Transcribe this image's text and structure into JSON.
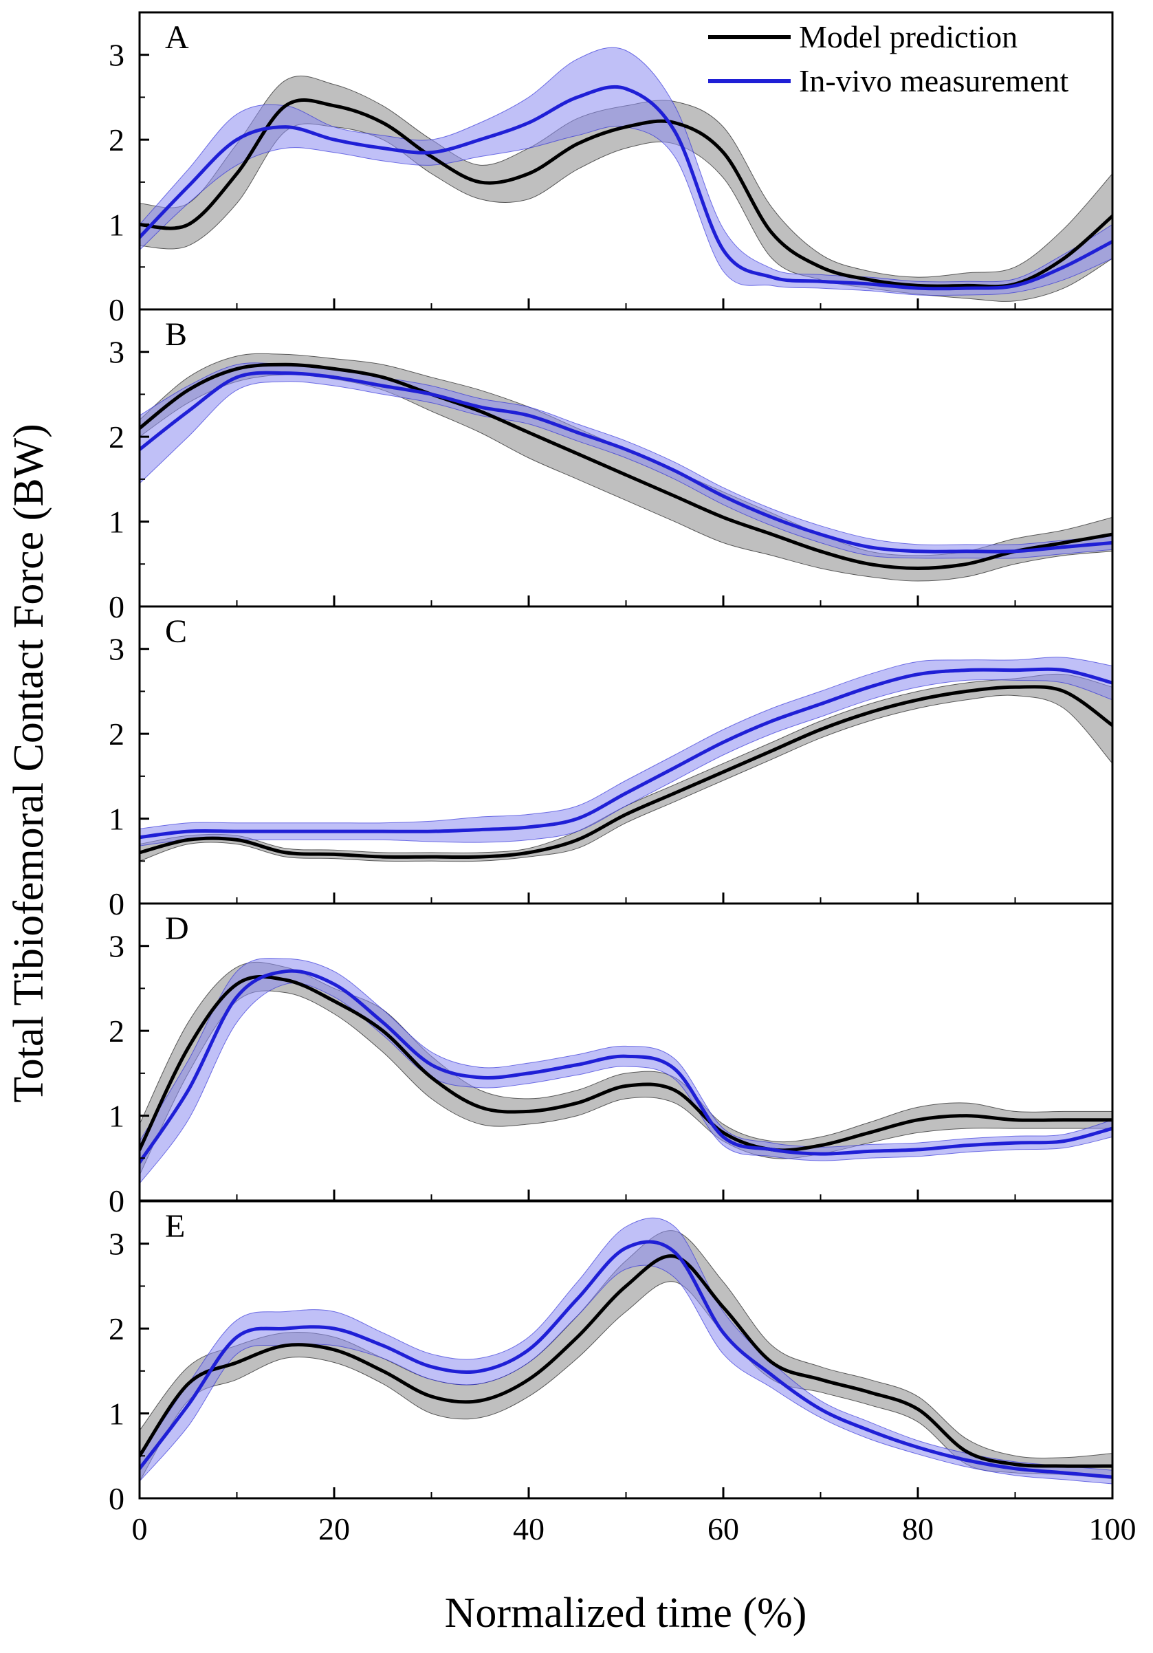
{
  "chart_data": {
    "type": "line",
    "xlabel": "Normalized time (%)",
    "ylabel": "Total Tibiofemoral Contact Force (BW)",
    "xlim": [
      0,
      100
    ],
    "ylim": [
      0,
      3.5
    ],
    "xticks": [
      0,
      20,
      40,
      60,
      80,
      100
    ],
    "yticks": [
      0,
      1,
      2,
      3
    ],
    "legend": {
      "position": "top-right",
      "entries": [
        {
          "name": "Model prediction",
          "color": "#000000"
        },
        {
          "name": "In-vivo measurement",
          "color": "#1f1fd6"
        }
      ]
    },
    "colors": {
      "model_line": "#000000",
      "model_band": "#a9a9a9",
      "measure_line": "#1f1fd6",
      "measure_band": "#8c8cf0"
    },
    "x": [
      0,
      5,
      10,
      15,
      20,
      25,
      30,
      35,
      40,
      45,
      50,
      55,
      60,
      65,
      70,
      75,
      80,
      85,
      90,
      95,
      100
    ],
    "panels": [
      {
        "label": "A",
        "series": [
          {
            "name": "Model prediction",
            "values": [
              1.0,
              1.0,
              1.6,
              2.4,
              2.4,
              2.2,
              1.8,
              1.5,
              1.6,
              1.95,
              2.15,
              2.2,
              1.85,
              0.9,
              0.5,
              0.35,
              0.28,
              0.28,
              0.3,
              0.6,
              1.1
            ],
            "sd": [
              0.25,
              0.25,
              0.35,
              0.3,
              0.25,
              0.2,
              0.2,
              0.2,
              0.3,
              0.3,
              0.25,
              0.25,
              0.3,
              0.3,
              0.15,
              0.1,
              0.1,
              0.15,
              0.2,
              0.35,
              0.5
            ]
          },
          {
            "name": "In-vivo measurement",
            "values": [
              0.85,
              1.45,
              2.0,
              2.15,
              2.0,
              1.9,
              1.85,
              2.0,
              2.2,
              2.5,
              2.6,
              2.1,
              0.7,
              0.38,
              0.33,
              0.3,
              0.25,
              0.25,
              0.28,
              0.5,
              0.8
            ],
            "sd": [
              0.15,
              0.2,
              0.3,
              0.25,
              0.15,
              0.15,
              0.15,
              0.2,
              0.3,
              0.45,
              0.45,
              0.3,
              0.25,
              0.1,
              0.08,
              0.08,
              0.08,
              0.08,
              0.08,
              0.15,
              0.2
            ]
          }
        ]
      },
      {
        "label": "B",
        "series": [
          {
            "name": "Model prediction",
            "values": [
              2.1,
              2.55,
              2.8,
              2.85,
              2.8,
              2.7,
              2.5,
              2.3,
              2.05,
              1.8,
              1.55,
              1.3,
              1.05,
              0.85,
              0.65,
              0.5,
              0.45,
              0.5,
              0.65,
              0.75,
              0.85
            ],
            "sd": [
              0.1,
              0.15,
              0.15,
              0.12,
              0.12,
              0.15,
              0.2,
              0.25,
              0.3,
              0.3,
              0.3,
              0.3,
              0.3,
              0.25,
              0.2,
              0.15,
              0.15,
              0.15,
              0.15,
              0.15,
              0.2
            ]
          },
          {
            "name": "In-vivo measurement",
            "values": [
              1.85,
              2.3,
              2.7,
              2.75,
              2.7,
              2.6,
              2.5,
              2.35,
              2.25,
              2.05,
              1.85,
              1.6,
              1.3,
              1.05,
              0.85,
              0.7,
              0.65,
              0.65,
              0.65,
              0.7,
              0.75
            ],
            "sd": [
              0.4,
              0.3,
              0.15,
              0.1,
              0.1,
              0.1,
              0.1,
              0.1,
              0.1,
              0.1,
              0.1,
              0.1,
              0.1,
              0.1,
              0.1,
              0.1,
              0.08,
              0.08,
              0.08,
              0.08,
              0.08
            ]
          }
        ]
      },
      {
        "label": "C",
        "series": [
          {
            "name": "Model prediction",
            "values": [
              0.6,
              0.75,
              0.75,
              0.6,
              0.58,
              0.55,
              0.55,
              0.55,
              0.6,
              0.75,
              1.05,
              1.3,
              1.55,
              1.8,
              2.05,
              2.25,
              2.4,
              2.5,
              2.55,
              2.5,
              2.1
            ],
            "sd": [
              0.1,
              0.05,
              0.05,
              0.05,
              0.05,
              0.05,
              0.05,
              0.05,
              0.05,
              0.1,
              0.1,
              0.1,
              0.1,
              0.1,
              0.1,
              0.1,
              0.1,
              0.1,
              0.1,
              0.2,
              0.45
            ]
          },
          {
            "name": "In-vivo measurement",
            "values": [
              0.78,
              0.85,
              0.85,
              0.85,
              0.85,
              0.85,
              0.85,
              0.87,
              0.9,
              1.0,
              1.3,
              1.6,
              1.9,
              2.15,
              2.35,
              2.55,
              2.7,
              2.75,
              2.75,
              2.75,
              2.6
            ],
            "sd": [
              0.1,
              0.1,
              0.1,
              0.1,
              0.1,
              0.1,
              0.12,
              0.15,
              0.15,
              0.15,
              0.15,
              0.15,
              0.15,
              0.15,
              0.15,
              0.15,
              0.15,
              0.12,
              0.12,
              0.15,
              0.2
            ]
          }
        ]
      },
      {
        "label": "D",
        "series": [
          {
            "name": "Model prediction",
            "values": [
              0.6,
              1.8,
              2.55,
              2.6,
              2.35,
              2.0,
              1.45,
              1.1,
              1.05,
              1.15,
              1.35,
              1.3,
              0.8,
              0.6,
              0.65,
              0.8,
              0.95,
              1.0,
              0.95,
              0.95,
              0.95
            ],
            "sd": [
              0.3,
              0.3,
              0.2,
              0.15,
              0.15,
              0.25,
              0.25,
              0.2,
              0.15,
              0.15,
              0.15,
              0.15,
              0.1,
              0.1,
              0.1,
              0.12,
              0.15,
              0.15,
              0.1,
              0.1,
              0.1
            ]
          },
          {
            "name": "In-vivo measurement",
            "values": [
              0.45,
              1.3,
              2.4,
              2.7,
              2.55,
              2.1,
              1.6,
              1.45,
              1.5,
              1.6,
              1.7,
              1.55,
              0.75,
              0.6,
              0.55,
              0.58,
              0.6,
              0.65,
              0.68,
              0.7,
              0.85
            ],
            "sd": [
              0.25,
              0.35,
              0.3,
              0.15,
              0.15,
              0.15,
              0.15,
              0.12,
              0.12,
              0.12,
              0.12,
              0.12,
              0.1,
              0.08,
              0.08,
              0.08,
              0.08,
              0.08,
              0.08,
              0.08,
              0.1
            ]
          }
        ]
      },
      {
        "label": "E",
        "series": [
          {
            "name": "Model prediction",
            "values": [
              0.5,
              1.35,
              1.6,
              1.8,
              1.75,
              1.5,
              1.2,
              1.15,
              1.4,
              1.9,
              2.5,
              2.85,
              2.25,
              1.6,
              1.4,
              1.25,
              1.05,
              0.55,
              0.4,
              0.38,
              0.38
            ],
            "sd": [
              0.3,
              0.2,
              0.2,
              0.15,
              0.15,
              0.15,
              0.2,
              0.2,
              0.2,
              0.25,
              0.3,
              0.3,
              0.3,
              0.2,
              0.15,
              0.15,
              0.15,
              0.15,
              0.1,
              0.1,
              0.15
            ]
          },
          {
            "name": "In-vivo measurement",
            "values": [
              0.35,
              1.1,
              1.9,
              2.0,
              2.0,
              1.8,
              1.55,
              1.5,
              1.75,
              2.35,
              2.95,
              2.9,
              1.95,
              1.45,
              1.05,
              0.8,
              0.6,
              0.45,
              0.35,
              0.3,
              0.25
            ],
            "sd": [
              0.15,
              0.25,
              0.2,
              0.2,
              0.2,
              0.15,
              0.15,
              0.15,
              0.15,
              0.2,
              0.25,
              0.3,
              0.25,
              0.15,
              0.1,
              0.1,
              0.08,
              0.08,
              0.08,
              0.08,
              0.08
            ]
          }
        ]
      }
    ]
  }
}
